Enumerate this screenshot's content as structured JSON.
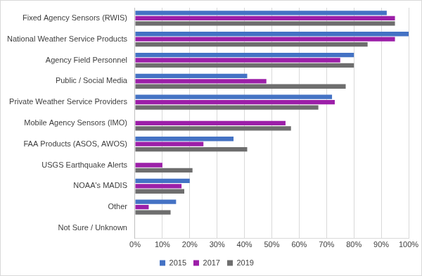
{
  "chart_data": {
    "type": "bar",
    "orientation": "horizontal",
    "categories": [
      "Fixed Agency Sensors (RWIS)",
      "National Weather Service Products",
      "Agency Field Personnel",
      "Public / Social Media",
      "Private Weather Service Providers",
      "Mobile Agency Sensors (IMO)",
      "FAA Products (ASOS, AWOS)",
      "USGS Earthquake Alerts",
      "NOAA's MADIS",
      "Other",
      "Not Sure / Unknown"
    ],
    "series": [
      {
        "name": "2015",
        "color": "#4472c4",
        "values": [
          92,
          100,
          80,
          41,
          72,
          null,
          36,
          null,
          20,
          15,
          0
        ]
      },
      {
        "name": "2017",
        "color": "#9c1fa8",
        "values": [
          95,
          95,
          75,
          48,
          73,
          55,
          25,
          10,
          17,
          5,
          0
        ]
      },
      {
        "name": "2019",
        "color": "#6e6e6e",
        "values": [
          95,
          85,
          80,
          77,
          67,
          57,
          41,
          21,
          18,
          13,
          0
        ]
      }
    ],
    "xlim": [
      0,
      100
    ],
    "xticks": [
      {
        "value": 0,
        "label": "0%"
      },
      {
        "value": 10,
        "label": "10%"
      },
      {
        "value": 20,
        "label": "20%"
      },
      {
        "value": 30,
        "label": "30%"
      },
      {
        "value": 40,
        "label": "40%"
      },
      {
        "value": 50,
        "label": "50%"
      },
      {
        "value": 60,
        "label": "60%"
      },
      {
        "value": 70,
        "label": "70%"
      },
      {
        "value": 80,
        "label": "80%"
      },
      {
        "value": 90,
        "label": "90%"
      },
      {
        "value": 100,
        "label": "100%"
      }
    ],
    "grid": true,
    "legend": "bottom"
  }
}
